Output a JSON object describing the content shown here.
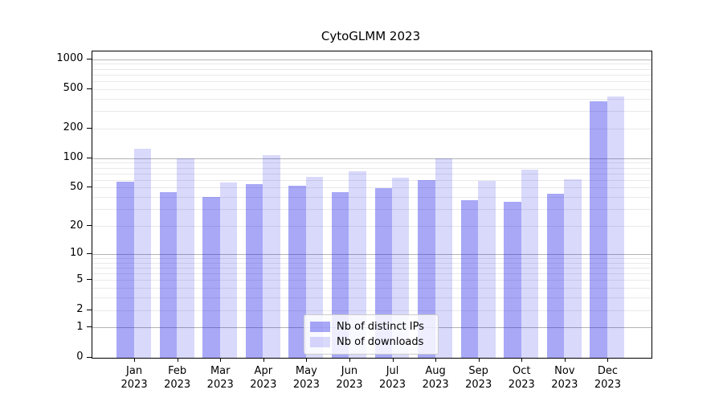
{
  "title": "CytoGLMM 2023",
  "chart_data": {
    "type": "bar",
    "title": "CytoGLMM 2023",
    "categories": [
      "Jan 2023",
      "Feb 2023",
      "Mar 2023",
      "Apr 2023",
      "May 2023",
      "Jun 2023",
      "Jul 2023",
      "Aug 2023",
      "Sep 2023",
      "Oct 2023",
      "Nov 2023",
      "Dec 2023"
    ],
    "series": [
      {
        "name": "Nb of distinct IPs",
        "color": "#1e1eeb",
        "fill_alpha": 0.39,
        "values": [
          58,
          45,
          40,
          54,
          52,
          45,
          50,
          60,
          37,
          36,
          43,
          375
        ]
      },
      {
        "name": "Nb of downloads",
        "color": "#1e1eeb",
        "fill_alpha": 0.17,
        "values": [
          126,
          100,
          57,
          107,
          65,
          74,
          63,
          100,
          59,
          76,
          61,
          425
        ]
      }
    ],
    "xlabel": "",
    "ylabel": "",
    "yscale": "log1p",
    "ylim": [
      0,
      1210
    ],
    "yticks": [
      0,
      1,
      2,
      5,
      10,
      20,
      50,
      100,
      200,
      500,
      1000
    ],
    "grid": true,
    "grid_major_ticks": [
      1,
      10,
      100,
      1000
    ],
    "grid_minor_ticks": [
      2,
      3,
      4,
      5,
      6,
      7,
      8,
      9,
      20,
      30,
      40,
      50,
      60,
      70,
      80,
      90,
      200,
      300,
      400,
      500,
      600,
      700,
      800,
      900
    ],
    "legend_position": "lower center",
    "appearance": {
      "grid_major_color": "#b3b3b3",
      "grid_minor_color": "#e9e9e9",
      "spine_color": "#000000",
      "background_color": "#ffffff"
    }
  }
}
